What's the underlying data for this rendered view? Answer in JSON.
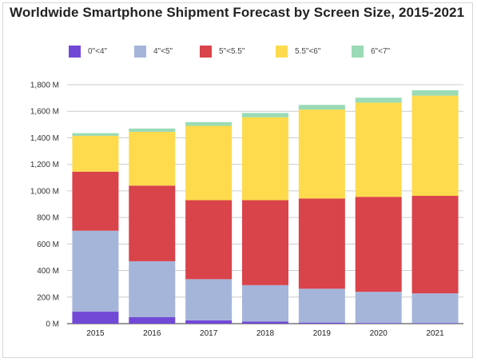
{
  "chart_data": {
    "type": "bar",
    "stacked": true,
    "title": "Worldwide Smartphone Shipment Forecast by Screen Size, 2015-2021",
    "xlabel": "",
    "ylabel": "",
    "categories": [
      "2015",
      "2016",
      "2017",
      "2018",
      "2019",
      "2020",
      "2021"
    ],
    "ylim": [
      0,
      1800
    ],
    "yticks": [
      0,
      200,
      400,
      600,
      800,
      1000,
      1200,
      1400,
      1600,
      1800
    ],
    "ytick_labels": [
      "0 M",
      "200 M",
      "400 M",
      "600 M",
      "800 M",
      "1,000 M",
      "1,200 M",
      "1,400 M",
      "1,600 M",
      "1,800 M"
    ],
    "grid": true,
    "legend_position": "top",
    "series": [
      {
        "name": "0\"<4\"",
        "color": "#7149d6",
        "values": [
          90,
          50,
          25,
          15,
          8,
          5,
          3
        ]
      },
      {
        "name": "4\"<5\"",
        "color": "#a5b5da",
        "values": [
          610,
          420,
          310,
          275,
          255,
          235,
          225
        ]
      },
      {
        "name": "5\"<5.5\"",
        "color": "#d9434a",
        "values": [
          445,
          570,
          595,
          640,
          680,
          715,
          735
        ]
      },
      {
        "name": "5.5\"<6\"",
        "color": "#fddb4d",
        "values": [
          270,
          405,
          560,
          625,
          670,
          710,
          755
        ]
      },
      {
        "name": "6\"<7\"",
        "color": "#9adbb6",
        "values": [
          20,
          25,
          28,
          32,
          35,
          37,
          40
        ]
      }
    ]
  }
}
